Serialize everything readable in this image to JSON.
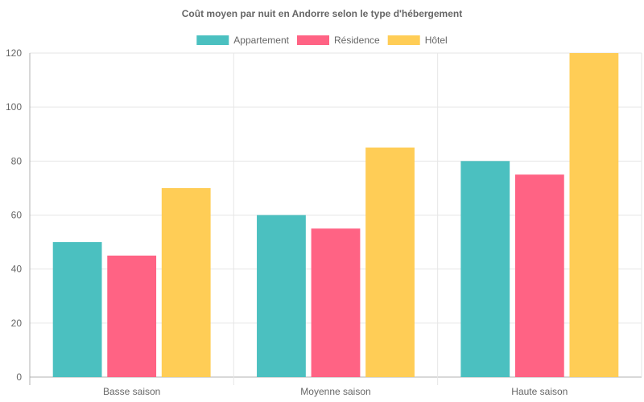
{
  "chart_data": {
    "type": "bar",
    "title": "Coût moyen par nuit en Andorre selon le type d'hébergement",
    "categories": [
      "Basse saison",
      "Moyenne saison",
      "Haute saison"
    ],
    "series": [
      {
        "name": "Appartement",
        "values": [
          50,
          60,
          80
        ],
        "color": "#4BC0C0"
      },
      {
        "name": "Résidence",
        "values": [
          45,
          55,
          75
        ],
        "color": "#FF6384"
      },
      {
        "name": "Hôtel",
        "values": [
          70,
          85,
          120
        ],
        "color": "#FFCD56"
      }
    ],
    "ylim": [
      0,
      120
    ],
    "yticks": [
      0,
      20,
      40,
      60,
      80,
      100,
      120
    ],
    "grid": true,
    "legend_position": "top"
  }
}
